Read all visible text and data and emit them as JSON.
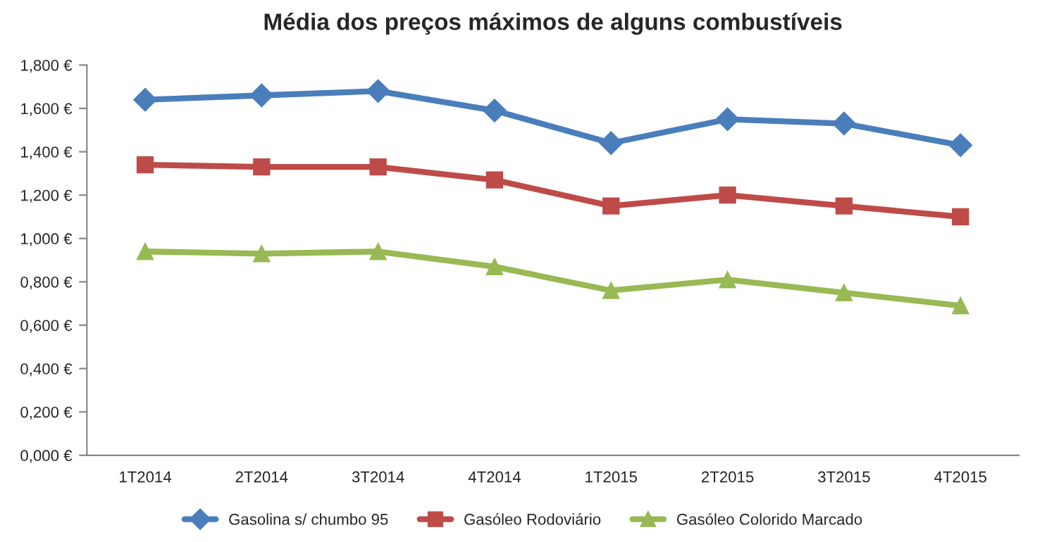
{
  "chart_data": {
    "type": "line",
    "title": "Média dos preços máximos de alguns combustíveis",
    "categories": [
      "1T2014",
      "2T2014",
      "3T2014",
      "4T2014",
      "1T2015",
      "2T2015",
      "3T2015",
      "4T2015"
    ],
    "series": [
      {
        "name": "Gasolina s/ chumbo 95",
        "color": "#4a7ebb",
        "marker": "diamond",
        "values": [
          1.64,
          1.66,
          1.68,
          1.59,
          1.44,
          1.55,
          1.53,
          1.43
        ]
      },
      {
        "name": "Gasóleo Rodoviário",
        "color": "#be4b48",
        "marker": "square",
        "values": [
          1.34,
          1.33,
          1.33,
          1.27,
          1.15,
          1.2,
          1.15,
          1.1
        ]
      },
      {
        "name": "Gasóleo Colorido Marcado",
        "color": "#98b954",
        "marker": "triangle",
        "values": [
          0.94,
          0.93,
          0.94,
          0.87,
          0.76,
          0.81,
          0.75,
          0.69
        ]
      }
    ],
    "ylim": [
      0,
      1.8
    ],
    "yticks": [
      {
        "value": 0,
        "label": "0,000 €"
      },
      {
        "value": 0.2,
        "label": "0,200 €"
      },
      {
        "value": 0.4,
        "label": "0,400 €"
      },
      {
        "value": 0.6,
        "label": "0,600 €"
      },
      {
        "value": 0.8,
        "label": "0,800 €"
      },
      {
        "value": 1.0,
        "label": "1,000 €"
      },
      {
        "value": 1.2,
        "label": "1,200 €"
      },
      {
        "value": 1.4,
        "label": "1,400 €"
      },
      {
        "value": 1.6,
        "label": "1,600 €"
      },
      {
        "value": 1.8,
        "label": "1,800 €"
      }
    ],
    "grid": false,
    "legend": "bottom",
    "line_style": "solid"
  }
}
